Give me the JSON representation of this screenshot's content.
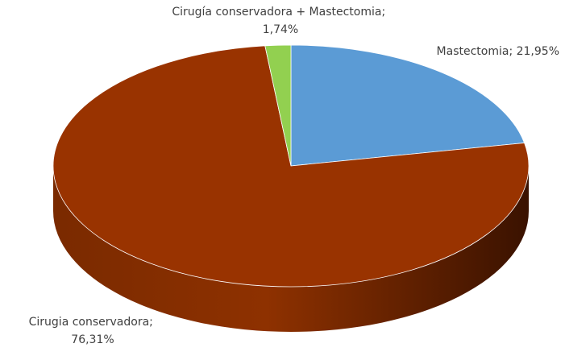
{
  "chart_data": {
    "type": "pie",
    "style": "3d",
    "slices": [
      {
        "label": "Mastectomia",
        "value": 21.95,
        "value_text": "21,95%",
        "color": "#5b9bd5",
        "side_color": "#3f7ab0"
      },
      {
        "label": "Cirugia conservadora",
        "value": 76.31,
        "value_text": "76,31%",
        "color": "#993300",
        "side_color": "#6e2400"
      },
      {
        "label": "Cirugía conservadora + Mastectomia",
        "value": 1.74,
        "value_text": "1,74%",
        "color": "#92d050",
        "side_color": "#6fa536"
      }
    ],
    "data_labels": [
      {
        "lines": [
          "Mastectomia; 21,95%"
        ]
      },
      {
        "lines": [
          "Cirugia conservadora;",
          "76,31%"
        ]
      },
      {
        "lines": [
          "Cirugía conservadora + Mastectomia;",
          "1,74%"
        ]
      }
    ],
    "legend": "none"
  }
}
